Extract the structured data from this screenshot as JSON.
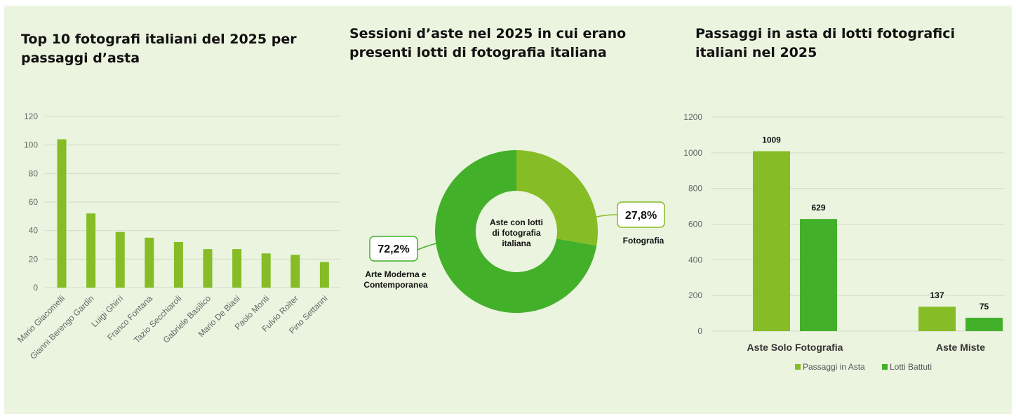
{
  "chart_data": [
    {
      "type": "bar",
      "title": "Top 10 fotografi italiani del 2025 per\npassaggi d’asta",
      "categories": [
        "Mario Giacomelli",
        "Gianni Berengo Gardin",
        "Luigi Ghirri",
        "Franco Fontana",
        "Tazio Secchiaroli",
        "Gabriele Basilico",
        "Mario De Biasi",
        "Paolo Monti",
        "Fulvio Roiter",
        "Pino Settanni"
      ],
      "values": [
        104,
        52,
        39,
        35,
        32,
        27,
        27,
        24,
        23,
        18
      ],
      "yticks": [
        "0",
        "20",
        "40",
        "60",
        "80",
        "100",
        "120"
      ],
      "ylim": [
        0,
        120
      ],
      "grid": true,
      "color": "#86bc25"
    },
    {
      "type": "pie",
      "title": "Sessioni d’aste nel  2025 in cui erano\npresenti lotti di fotografia italiana",
      "center_label": "Aste con lotti\ndi fotografia\nitaliana",
      "slices": [
        {
          "label": "Fotografia",
          "value": 27.8,
          "value_label": "27,8%",
          "color": "#86bc25"
        },
        {
          "label": "Arte Moderna e\nContemporanea",
          "value": 72.2,
          "value_label": "72,2%",
          "color": "#43b02a"
        }
      ]
    },
    {
      "type": "bar",
      "title": "Passaggi in asta di lotti fotografici\nitaliani nel 2025",
      "categories": [
        "Aste Solo Fotografia",
        "Aste Miste"
      ],
      "series": [
        {
          "name": "Passaggi in Asta",
          "values": [
            1009,
            137
          ],
          "color": "#86bc25"
        },
        {
          "name": "Lotti Battuti",
          "values": [
            629,
            75
          ],
          "color": "#43b02a"
        }
      ],
      "yticks": [
        "0",
        "200",
        "400",
        "600",
        "800",
        "1000",
        "1200"
      ],
      "ylim": [
        0,
        1200
      ],
      "grid": true,
      "legend": "bottom"
    }
  ]
}
